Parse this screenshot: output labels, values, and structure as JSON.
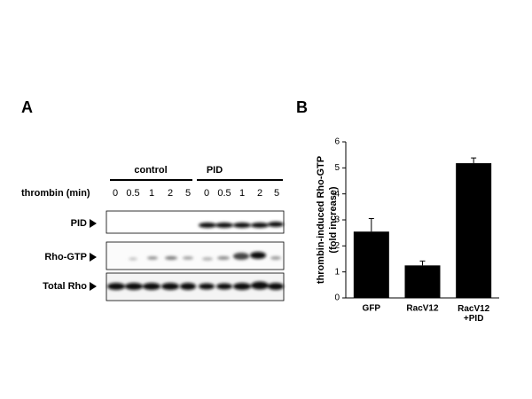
{
  "panel_a": {
    "label": "A",
    "time_axis_label": "thrombin (min)",
    "groups": [
      {
        "name": "control",
        "times": [
          "0",
          "0.5",
          "1",
          "2",
          "5"
        ]
      },
      {
        "name": "PID",
        "times": [
          "0",
          "0.5",
          "1",
          "2",
          "5"
        ]
      }
    ],
    "rows": [
      "PID",
      "Rho-GTP",
      "Total Rho"
    ]
  },
  "chart_data": {
    "type": "bar",
    "panel_label": "B",
    "y_label": "thrombin-induced Rho-GTP\n(fold  increase)",
    "categories": [
      "GFP",
      "RacV12",
      "RacV12\n+PID"
    ],
    "values": [
      2.55,
      1.25,
      5.18
    ],
    "errors": [
      0.5,
      0.17,
      0.2
    ],
    "color": "#000000",
    "ylim": [
      0,
      6
    ],
    "yticks": [
      0,
      1,
      2,
      3,
      4,
      5,
      6
    ],
    "grid": false
  }
}
